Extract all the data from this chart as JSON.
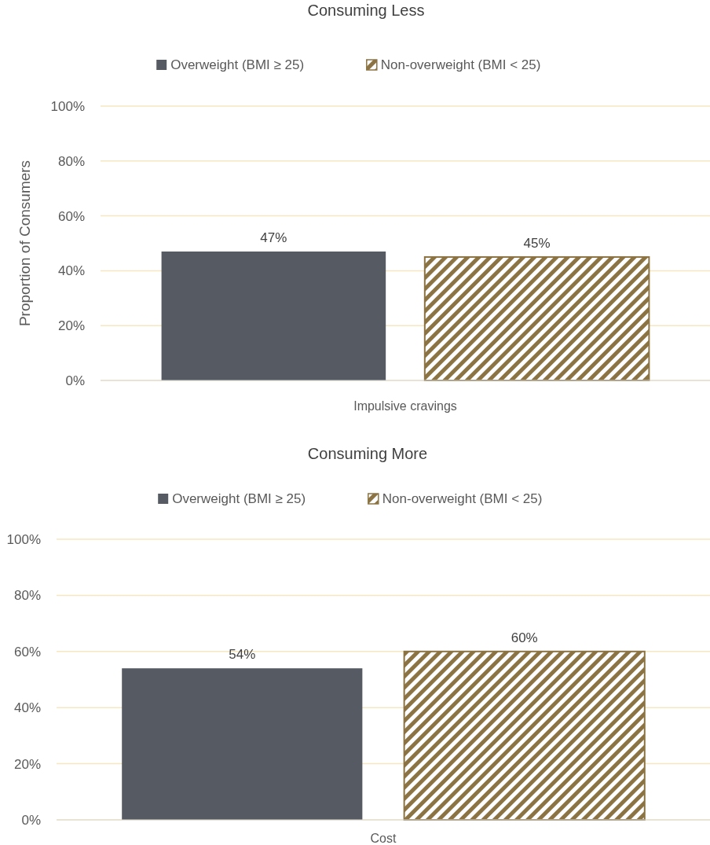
{
  "chart_data": [
    {
      "type": "bar",
      "title": "Consuming Less",
      "ylabel": "Proportion of Consumers",
      "categories": [
        "Impulsive cravings"
      ],
      "series": [
        {
          "name": "Overweight (BMI ≥ 25)",
          "color": "#555a63",
          "values": [
            47
          ],
          "value_labels": [
            "47%"
          ]
        },
        {
          "name": "Non-overweight (BMI < 25)",
          "color": "#8c7343",
          "values": [
            45
          ],
          "value_labels": [
            "45%"
          ]
        }
      ],
      "ylim": [
        0,
        100
      ],
      "yticks": [
        {
          "value": 0,
          "label": "0%"
        },
        {
          "value": 20,
          "label": "20%"
        },
        {
          "value": 40,
          "label": "40%"
        },
        {
          "value": 60,
          "label": "60%"
        },
        {
          "value": 80,
          "label": "80%"
        },
        {
          "value": 100,
          "label": "100%"
        }
      ],
      "grid": "y",
      "legend": "top"
    },
    {
      "type": "bar",
      "title": "Consuming More",
      "categories": [
        "Cost"
      ],
      "series": [
        {
          "name": "Overweight (BMI ≥ 25)",
          "color": "#555a63",
          "values": [
            54
          ],
          "value_labels": [
            "54%"
          ]
        },
        {
          "name": "Non-overweight (BMI < 25)",
          "color": "#8c7343",
          "values": [
            60
          ],
          "value_labels": [
            "60%"
          ]
        }
      ],
      "ylim": [
        0,
        100
      ],
      "yticks": [
        {
          "value": 0,
          "label": "0%"
        },
        {
          "value": 20,
          "label": "20%"
        },
        {
          "value": 40,
          "label": "40%"
        },
        {
          "value": 60,
          "label": "60%"
        },
        {
          "value": 80,
          "label": "80%"
        },
        {
          "value": 100,
          "label": "100%"
        }
      ],
      "grid": "y",
      "legend": "top"
    }
  ]
}
